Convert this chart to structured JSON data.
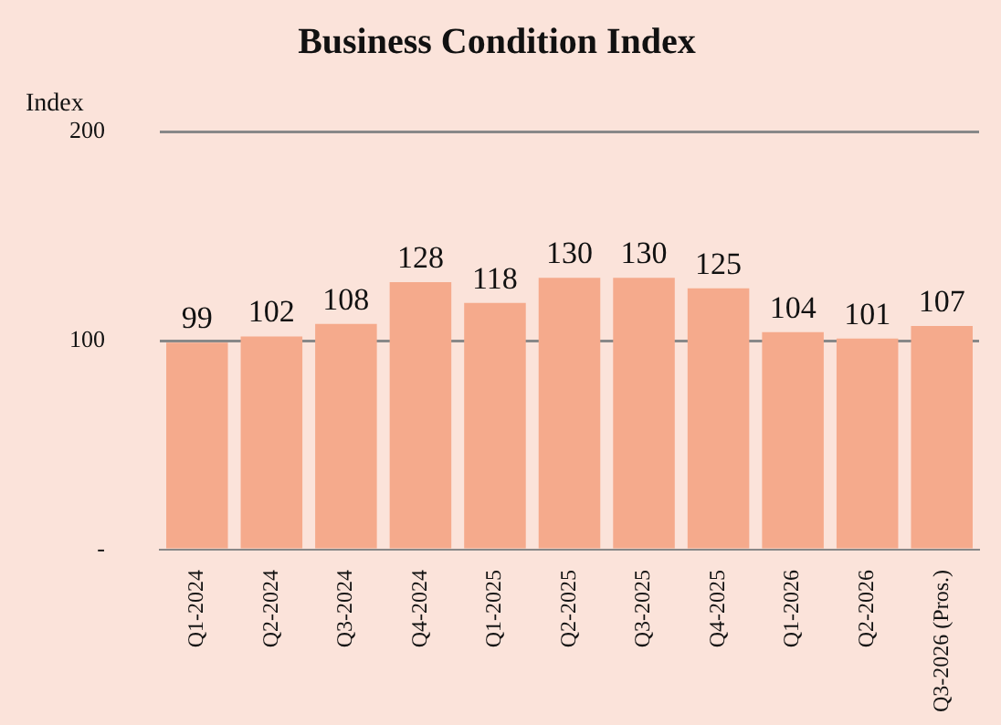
{
  "chart_data": {
    "type": "bar",
    "title": "Business Condition Index",
    "ylabel": "Index",
    "categories": [
      "Q1-2024",
      "Q2-2024",
      "Q3-2024",
      "Q4-2024",
      "Q1-2025",
      "Q2-2025",
      "Q3-2025",
      "Q4-2025",
      "Q1-2026",
      "Q2-2026",
      "Q3-2026 (Pros.)"
    ],
    "values": [
      99,
      102,
      108,
      128,
      118,
      130,
      130,
      125,
      104,
      101,
      107
    ],
    "color": "#f5aa8c",
    "ylim": [
      0,
      200
    ],
    "yticks": [
      {
        "value": 0,
        "label": "-"
      },
      100,
      200
    ],
    "grid": "y",
    "data_labels": true,
    "legend": false
  }
}
